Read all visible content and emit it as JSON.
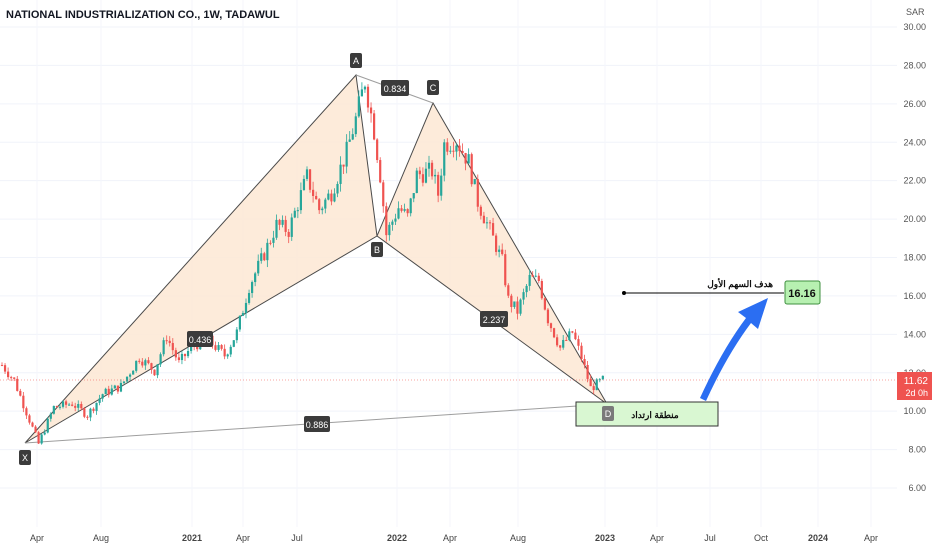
{
  "header": {
    "title": "NATIONAL INDUSTRIALIZATION CO., 1W, TADAWUL",
    "currency": "SAR"
  },
  "colors": {
    "up": "#26a69a",
    "down": "#ef5350",
    "pattern_fill": "#fde8d4",
    "pattern_line": "#4a4a4a",
    "target_line": "#000000",
    "arrow": "#2b6ef2",
    "target_box": "#b7f0b1",
    "zone_box": "#d9f7d2",
    "label_bg": "#3b3b3b"
  },
  "chart_data": {
    "type": "candlestick",
    "title": "NATIONAL INDUSTRIALIZATION CO., 1W, TADAWUL",
    "ylabel": "SAR",
    "ylim": [
      4.5,
      30.2
    ],
    "y_ticks": [
      "6.00",
      "8.00",
      "10.00",
      "12.00",
      "14.00",
      "16.00",
      "18.00",
      "20.00",
      "22.00",
      "24.00",
      "26.00",
      "28.00",
      "30.00"
    ],
    "x_ticks": [
      "Apr",
      "Aug",
      "2021",
      "Apr",
      "Jul",
      "2022",
      "Apr",
      "Aug",
      "2023",
      "Apr",
      "Jul",
      "Oct",
      "2024",
      "Apr"
    ],
    "last_price": "11.62",
    "countdown": "2d 0h",
    "pattern": {
      "points": [
        {
          "label": "X",
          "date": "2020-03-16",
          "price": 8.3
        },
        {
          "label": "A",
          "date": "2021-11-01",
          "price": 27.4
        },
        {
          "label": "B",
          "date": "2021-12-13",
          "price": 19.1
        },
        {
          "label": "C",
          "date": "2022-03-28",
          "price": 26.1
        },
        {
          "label": "D",
          "date": "2022-12-26",
          "price": 10.4
        }
      ],
      "ratios": [
        "0.436",
        "0.834",
        "2.237",
        "0.886"
      ]
    },
    "annotations": {
      "target_label": "هدف السهم الأول",
      "target_value": "16.16",
      "zone_label": "منطقة ارتداد"
    },
    "candle_path": [
      [
        12.4,
        0
      ],
      [
        11.6,
        4
      ],
      [
        8.3,
        12
      ],
      [
        10.2,
        17
      ],
      [
        10.4,
        23
      ],
      [
        9.8,
        28
      ],
      [
        10.9,
        33
      ],
      [
        11.3,
        39
      ],
      [
        12.8,
        45
      ],
      [
        12.1,
        50
      ],
      [
        13.9,
        54
      ],
      [
        12.5,
        58
      ],
      [
        13.3,
        62
      ],
      [
        13.8,
        67
      ],
      [
        12.9,
        73
      ],
      [
        14.1,
        77
      ],
      [
        16.5,
        81
      ],
      [
        18.2,
        86
      ],
      [
        19.7,
        90
      ],
      [
        19.4,
        94
      ],
      [
        22.2,
        100
      ],
      [
        20.5,
        104
      ],
      [
        21.4,
        108
      ],
      [
        23.5,
        113
      ],
      [
        25.2,
        116
      ],
      [
        27.2,
        119
      ],
      [
        24.6,
        122
      ],
      [
        22.3,
        124
      ],
      [
        19.2,
        126
      ],
      [
        20.6,
        130
      ],
      [
        20.1,
        133
      ],
      [
        22.3,
        136
      ],
      [
        22.5,
        141
      ],
      [
        21.3,
        143
      ],
      [
        23.9,
        145
      ],
      [
        24.1,
        149
      ],
      [
        23.0,
        153
      ],
      [
        20.9,
        156
      ],
      [
        19.4,
        160
      ],
      [
        17.8,
        164
      ],
      [
        15.8,
        166
      ],
      [
        15.2,
        169
      ],
      [
        16.9,
        173
      ],
      [
        16.8,
        176
      ],
      [
        14.8,
        179
      ],
      [
        13.3,
        183
      ],
      [
        14.1,
        187
      ],
      [
        12.8,
        190
      ],
      [
        11.2,
        193
      ],
      [
        11.62,
        197
      ]
    ]
  }
}
